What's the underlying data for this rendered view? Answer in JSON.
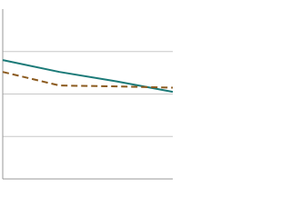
{
  "chart_data": {
    "type": "line",
    "x": [
      0,
      1,
      2,
      3
    ],
    "xlim": [
      0,
      3
    ],
    "series": [
      {
        "name": null,
        "color": "#1b7a78",
        "dash": false,
        "values": [
          2.8,
          2.52,
          2.3,
          2.05
        ]
      },
      {
        "name": null,
        "color": "#8b5a1e",
        "dash": true,
        "values": [
          2.52,
          2.2,
          2.18,
          2.15
        ]
      }
    ],
    "ylim": [
      0,
      4
    ],
    "yticks": [
      0,
      1,
      2,
      3,
      4
    ],
    "grid": true
  }
}
